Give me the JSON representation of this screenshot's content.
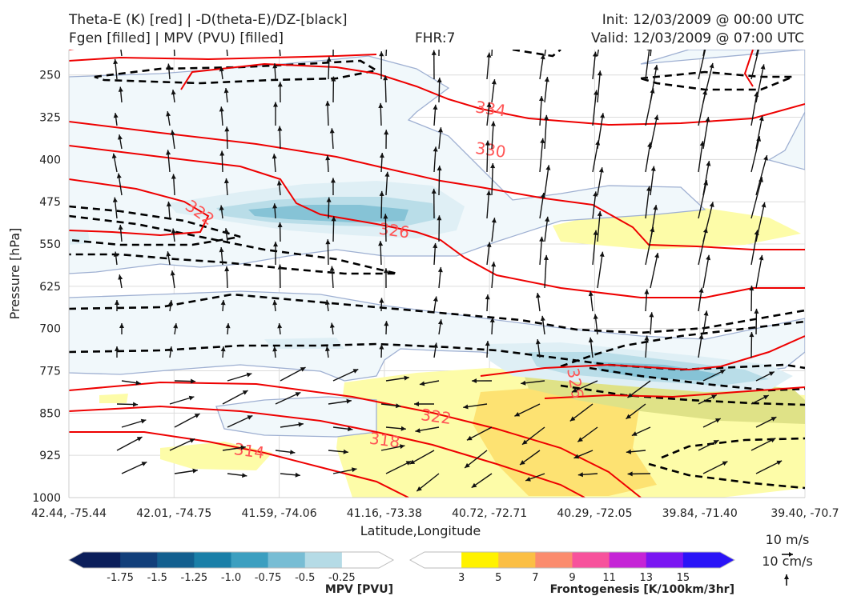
{
  "header": {
    "title_line1": "Theta-E (K) [red] | -D(theta-E)/DZ-[black]",
    "title_line2": "Fgen [filled] | MPV (PVU) [filled]",
    "fhr": "FHR:7",
    "init": "Init: 12/03/2009 @ 00:00 UTC",
    "valid": "Valid: 12/03/2009 @ 07:00 UTC"
  },
  "chart_data": {
    "type": "cross-section",
    "xlabel": "Latitude,Longitude",
    "ylabel": "Pressure [hPa]",
    "x_ticks": [
      "42.44, -75.44",
      "42.01, -74.75",
      "41.59, -74.06",
      "41.16, -73.38",
      "40.72, -72.71",
      "40.29, -72.05",
      "39.84, -71.40",
      "39.40, -70.7"
    ],
    "y_ticks": [
      250,
      325,
      400,
      475,
      550,
      625,
      700,
      775,
      850,
      925,
      1000
    ],
    "ylim": [
      1000,
      205
    ],
    "grid": true,
    "theta_e_contour_labels": [
      {
        "value": "334",
        "x": 0.573,
        "y": 310
      },
      {
        "value": "330",
        "x": 0.573,
        "y": 383
      },
      {
        "value": "322",
        "x": 0.178,
        "y": 494
      },
      {
        "value": "326",
        "x": 0.442,
        "y": 526
      },
      {
        "value": "326",
        "x": 0.688,
        "y": 797
      },
      {
        "value": "322",
        "x": 0.499,
        "y": 856
      },
      {
        "value": "318",
        "x": 0.429,
        "y": 898
      },
      {
        "value": "314",
        "x": 0.245,
        "y": 917
      }
    ],
    "mpv_colorbar": {
      "title": "MPV [PVU]",
      "labels": [
        "-1.75",
        "-1.5",
        "-1.25",
        "-1.0",
        "-0.75",
        "-0.5",
        "-0.25"
      ],
      "colors": [
        "#0b1e5a",
        "#123f7a",
        "#135f8f",
        "#1a7fa8",
        "#3c9fc0",
        "#78bdd4",
        "#b5dbe6",
        "#ffffff"
      ]
    },
    "fgen_colorbar": {
      "title": "Frontogenesis [K/100km/3hr]",
      "labels": [
        "3",
        "5",
        "7",
        "9",
        "11",
        "13",
        "15"
      ],
      "colors": [
        "#ffffff",
        "#fff200",
        "#fbbf45",
        "#fb8c6e",
        "#f7529c",
        "#c524d6",
        "#7a16f2",
        "#2a14f7"
      ]
    },
    "quiver_key": {
      "label1": "10 m/s",
      "label2": "10 cm/s"
    }
  }
}
